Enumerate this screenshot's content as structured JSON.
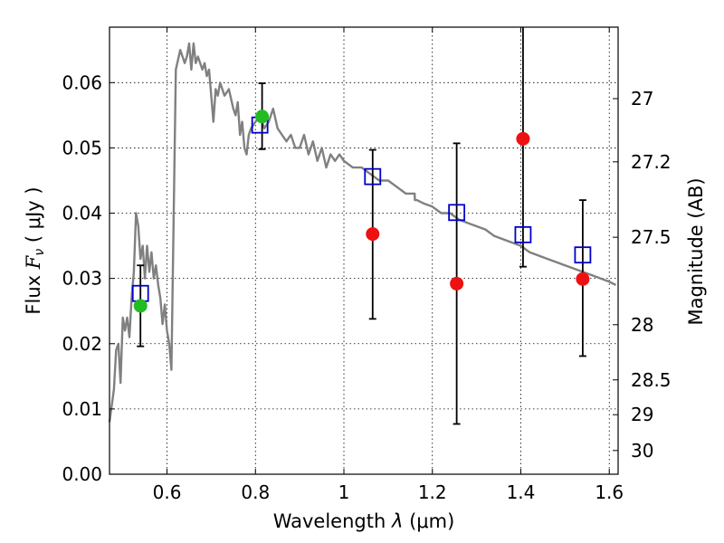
{
  "chart_data": {
    "type": "scatter",
    "title": "",
    "xlabel": "Wavelength",
    "xlabel_symbol": "λ",
    "xlabel_unit": "(μm)",
    "ylabel": "Flux",
    "ylabel_symbol": "F",
    "ylabel_subscript": "ν",
    "ylabel_unit": "( μJy )",
    "y2label": "Magnitude (AB)",
    "xlim": [
      0.47,
      1.62
    ],
    "ylim": [
      0.0,
      0.0685
    ],
    "grid": true,
    "x_ticks": [
      0.6,
      0.8,
      1.0,
      1.2,
      1.4,
      1.6
    ],
    "x_tick_labels": [
      "0.6",
      "0.8",
      "1",
      "1.2",
      "1.4",
      "1.6"
    ],
    "y_ticks": [
      0.0,
      0.01,
      0.02,
      0.03,
      0.04,
      0.05,
      0.06
    ],
    "y_tick_labels": [
      "0.00",
      "0.01",
      "0.02",
      "0.03",
      "0.04",
      "0.05",
      "0.06"
    ],
    "y2_ticks": [
      27,
      27.2,
      27.5,
      28,
      28.5,
      29,
      30
    ],
    "y2_tick_labels": [
      "27",
      "27.2",
      "27.5",
      "28",
      "28.5",
      "29",
      "30"
    ],
    "series": [
      {
        "name": "model spectrum",
        "kind": "line",
        "color": "#808080",
        "x": [
          0.47,
          0.48,
          0.485,
          0.49,
          0.495,
          0.5,
          0.505,
          0.51,
          0.515,
          0.52,
          0.525,
          0.53,
          0.535,
          0.54,
          0.545,
          0.55,
          0.555,
          0.56,
          0.565,
          0.57,
          0.575,
          0.58,
          0.585,
          0.59,
          0.595,
          0.6,
          0.605,
          0.61,
          0.62,
          0.63,
          0.64,
          0.645,
          0.65,
          0.655,
          0.66,
          0.665,
          0.67,
          0.68,
          0.685,
          0.69,
          0.695,
          0.7,
          0.705,
          0.71,
          0.715,
          0.72,
          0.73,
          0.74,
          0.75,
          0.755,
          0.76,
          0.765,
          0.77,
          0.775,
          0.78,
          0.785,
          0.79,
          0.8,
          0.81,
          0.82,
          0.83,
          0.84,
          0.85,
          0.86,
          0.87,
          0.88,
          0.89,
          0.9,
          0.91,
          0.92,
          0.93,
          0.94,
          0.95,
          0.96,
          0.97,
          0.98,
          0.99,
          1.0,
          1.02,
          1.04,
          1.06,
          1.08,
          1.1,
          1.12,
          1.14,
          1.16,
          1.1605,
          1.165,
          1.18,
          1.2,
          1.22,
          1.24,
          1.26,
          1.28,
          1.3,
          1.32,
          1.34,
          1.36,
          1.38,
          1.4,
          1.42,
          1.44,
          1.46,
          1.48,
          1.5,
          1.52,
          1.54,
          1.56,
          1.58,
          1.6,
          1.615
        ],
        "y": [
          0.008,
          0.013,
          0.019,
          0.02,
          0.014,
          0.024,
          0.022,
          0.024,
          0.021,
          0.027,
          0.031,
          0.04,
          0.038,
          0.033,
          0.035,
          0.03,
          0.035,
          0.031,
          0.034,
          0.03,
          0.032,
          0.029,
          0.027,
          0.023,
          0.026,
          0.022,
          0.02,
          0.016,
          0.062,
          0.065,
          0.063,
          0.064,
          0.066,
          0.062,
          0.066,
          0.063,
          0.064,
          0.062,
          0.063,
          0.061,
          0.062,
          0.058,
          0.054,
          0.059,
          0.058,
          0.06,
          0.058,
          0.059,
          0.056,
          0.055,
          0.057,
          0.052,
          0.054,
          0.05,
          0.049,
          0.052,
          0.053,
          0.054,
          0.055,
          0.053,
          0.054,
          0.056,
          0.053,
          0.052,
          0.051,
          0.052,
          0.05,
          0.05,
          0.052,
          0.049,
          0.051,
          0.048,
          0.05,
          0.047,
          0.049,
          0.048,
          0.049,
          0.048,
          0.047,
          0.047,
          0.046,
          0.045,
          0.045,
          0.044,
          0.043,
          0.043,
          0.042,
          0.042,
          0.0415,
          0.041,
          0.04,
          0.04,
          0.039,
          0.0385,
          0.038,
          0.0375,
          0.0365,
          0.036,
          0.0355,
          0.035,
          0.034,
          0.0335,
          0.033,
          0.0325,
          0.032,
          0.0315,
          0.031,
          0.0305,
          0.03,
          0.0295,
          0.029
        ]
      },
      {
        "name": "model photometry",
        "kind": "open-square",
        "color": "#0000cc",
        "x": [
          0.54,
          0.81,
          1.065,
          1.255,
          1.405,
          1.54
        ],
        "y": [
          0.0277,
          0.0535,
          0.0456,
          0.0401,
          0.0367,
          0.0336
        ]
      },
      {
        "name": "detections",
        "kind": "filled-circle",
        "color": "#22bb22",
        "x": [
          0.54,
          0.815
        ],
        "y": [
          0.0258,
          0.0548
        ]
      },
      {
        "name": "non-detections",
        "kind": "filled-circle",
        "color": "#ee1111",
        "x": [
          1.065,
          1.255,
          1.405,
          1.54
        ],
        "y": [
          0.0368,
          0.0292,
          0.0514,
          0.0299
        ]
      },
      {
        "name": "error bars",
        "kind": "errorbar",
        "color": "#000000",
        "x": [
          0.54,
          0.815,
          1.065,
          1.255,
          1.405,
          1.54
        ],
        "low": [
          0.0196,
          0.0498,
          0.0238,
          0.0077,
          0.0318,
          0.0181
        ],
        "high": [
          0.032,
          0.0599,
          0.0497,
          0.0507,
          0.0685,
          0.042
        ]
      }
    ]
  }
}
